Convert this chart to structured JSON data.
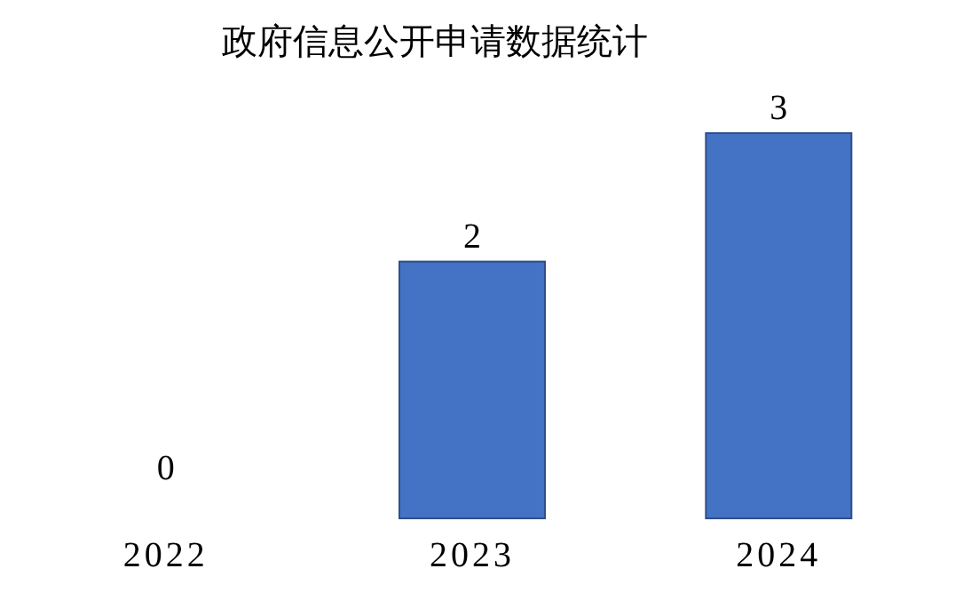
{
  "chart_data": {
    "type": "bar",
    "title": "政府信息公开申请数据统计",
    "categories": [
      "2022",
      "2023",
      "2024"
    ],
    "values": [
      0,
      2,
      3
    ],
    "color": "#4472c4",
    "data_labels": true
  }
}
